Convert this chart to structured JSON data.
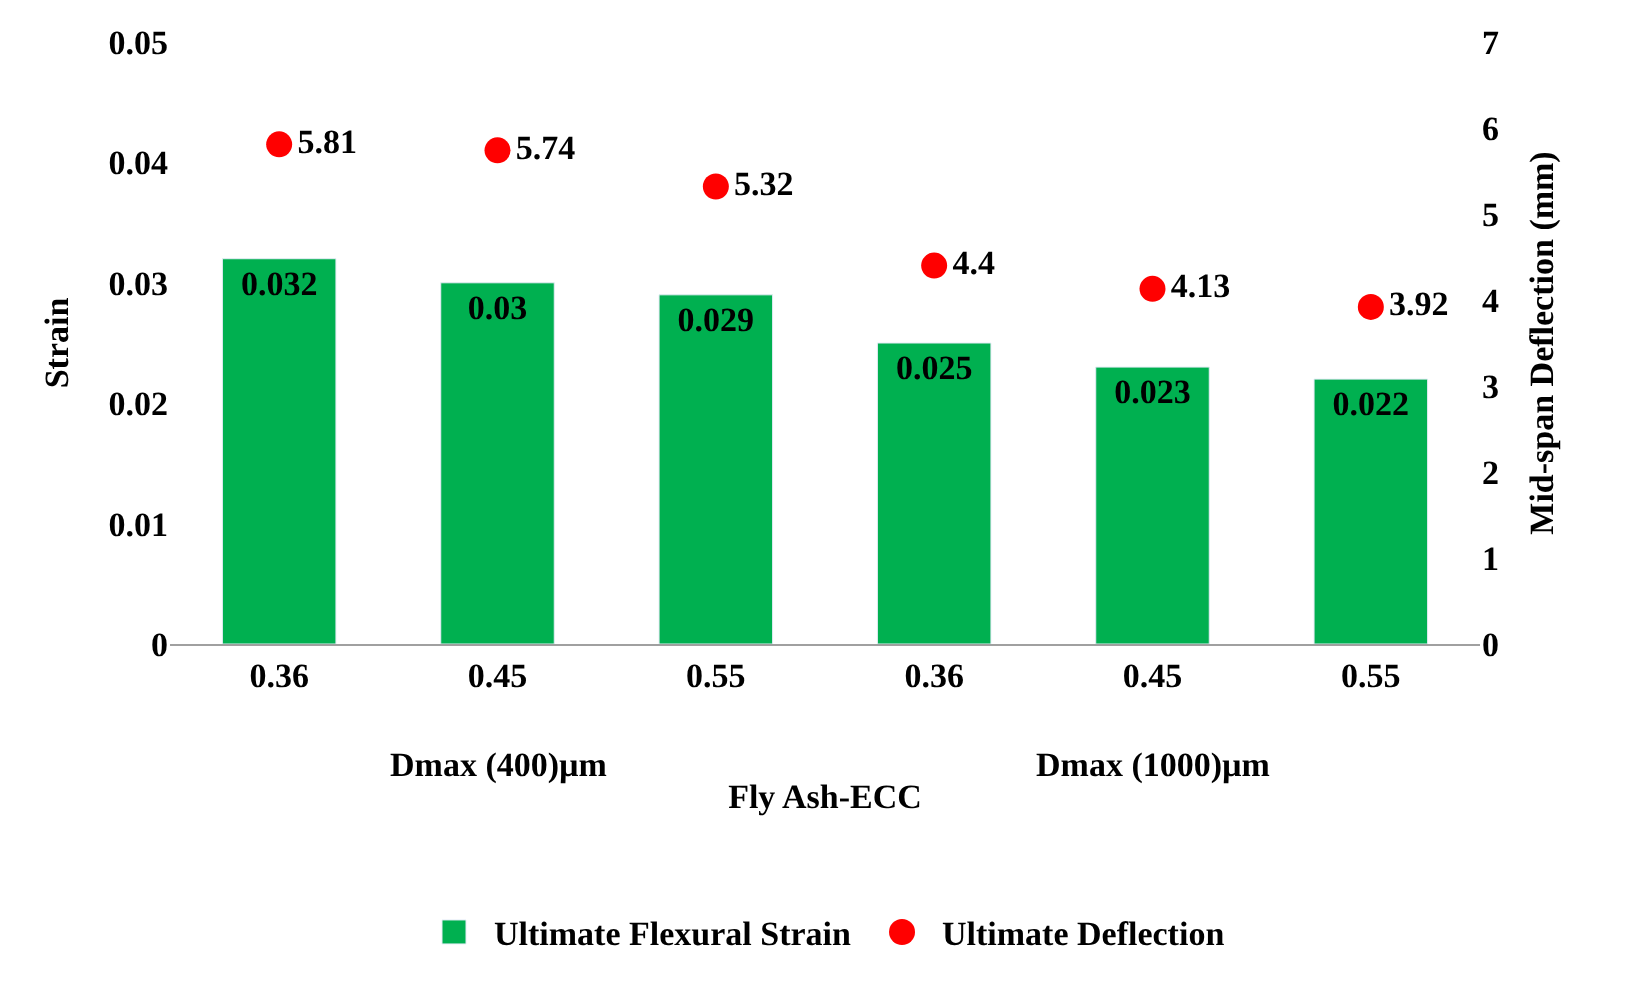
{
  "chart_data": {
    "type": "bar",
    "xlabel": "Fly Ash-ECC",
    "ylabel": "Strain",
    "y2label": "Mid-span Deflection (mm)",
    "categories": [
      "0.36",
      "0.45",
      "0.55",
      "0.36",
      "0.45",
      "0.55"
    ],
    "annotations": [
      "Dmax (400)µm",
      "Dmax (1000)µm"
    ],
    "series": [
      {
        "name": "Ultimate Flexural Strain",
        "color": "#00b050",
        "values": [
          0.032,
          0.03,
          0.029,
          0.025,
          0.023,
          0.022
        ]
      },
      {
        "name": "Ultimate Deflection",
        "type": "scatter",
        "axis": "y2",
        "color": "#ff0000",
        "marker": "circle",
        "values": [
          5.81,
          5.74,
          5.32,
          4.4,
          4.13,
          3.92
        ]
      }
    ],
    "ylim": [
      0,
      0.05
    ],
    "yticks": [
      0,
      0.01,
      0.02,
      0.03,
      0.04,
      0.05
    ],
    "y2lim": [
      0,
      7
    ],
    "y2ticks": [
      0,
      1,
      2,
      3,
      4,
      5,
      6,
      7
    ],
    "data_labels": true,
    "legend": "bottom",
    "grid": false
  }
}
